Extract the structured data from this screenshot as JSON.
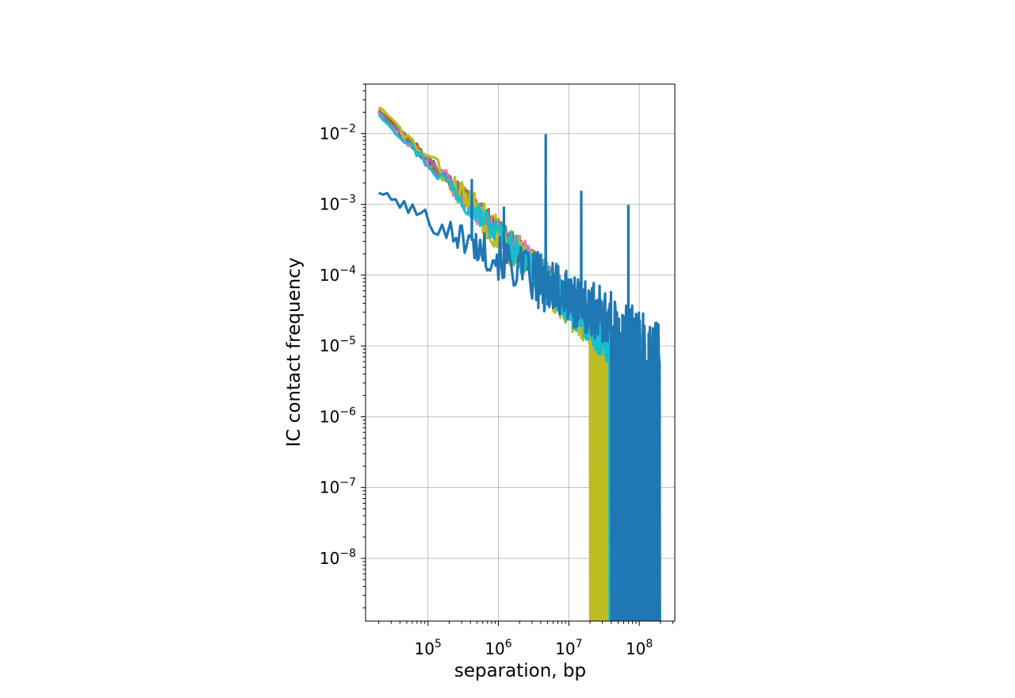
{
  "chart_data": {
    "type": "line",
    "xlabel": "separation, bp",
    "ylabel": "IC contact frequency",
    "xscale": "log",
    "yscale": "log",
    "xlim": [
      13000,
      320000000
    ],
    "ylim": [
      1.3e-09,
      0.05
    ],
    "grid": true,
    "x_ticks": [
      {
        "base": "10",
        "exp": "5",
        "value": 100000
      },
      {
        "base": "10",
        "exp": "6",
        "value": 1000000
      },
      {
        "base": "10",
        "exp": "7",
        "value": 10000000
      },
      {
        "base": "10",
        "exp": "8",
        "value": 100000000
      }
    ],
    "y_ticks": [
      {
        "base": "10",
        "exp": "−2",
        "value": 0.01
      },
      {
        "base": "10",
        "exp": "−3",
        "value": 0.001
      },
      {
        "base": "10",
        "exp": "−4",
        "value": 0.0001
      },
      {
        "base": "10",
        "exp": "−5",
        "value": 1e-05
      },
      {
        "base": "10",
        "exp": "−6",
        "value": 1e-06
      },
      {
        "base": "10",
        "exp": "−7",
        "value": 1e-07
      },
      {
        "base": "10",
        "exp": "−8",
        "value": 1e-08
      }
    ],
    "series": [
      {
        "color": "#2ca02c",
        "seed": 11,
        "x_end": 200000000,
        "y_start": 0.021,
        "slope": -1.0,
        "noise": 0.22,
        "drop_start": 150000000
      },
      {
        "color": "#d62728",
        "seed": 23,
        "x_end": 170000000,
        "y_start": 0.022,
        "slope": -1.0,
        "noise": 0.22,
        "drop_start": 120000000
      },
      {
        "color": "#ff7f0e",
        "seed": 37,
        "x_end": 180000000,
        "y_start": 0.0215,
        "slope": -1.0,
        "noise": 0.22,
        "drop_start": 130000000
      },
      {
        "color": "#9467bd",
        "seed": 41,
        "x_end": 150000000,
        "y_start": 0.02,
        "slope": -1.0,
        "noise": 0.22,
        "drop_start": 110000000
      },
      {
        "color": "#8c564b",
        "seed": 53,
        "x_end": 140000000,
        "y_start": 0.021,
        "slope": -1.0,
        "noise": 0.22,
        "drop_start": 100000000
      },
      {
        "color": "#e377c2",
        "seed": 67,
        "x_end": 60000000,
        "y_start": 0.0205,
        "slope": -1.0,
        "noise": 0.26,
        "drop_start": 20000000
      },
      {
        "color": "#7f7f7f",
        "seed": 71,
        "x_end": 130000000,
        "y_start": 0.0212,
        "slope": -1.0,
        "noise": 0.22,
        "drop_start": 90000000
      },
      {
        "color": "#bcbd22",
        "seed": 83,
        "x_end": 40000000,
        "y_start": 0.024,
        "slope": -1.05,
        "noise": 0.3,
        "drop_start": 20000000
      },
      {
        "color": "#17becf",
        "seed": 97,
        "x_end": 170000000,
        "y_start": 0.019,
        "slope": -1.0,
        "noise": 0.28,
        "drop_start": 38000000
      },
      {
        "color": "#1f77b4",
        "seed": 101,
        "x_end": 195000000,
        "y_start": 0.0015,
        "slope": -0.55,
        "noise": 0.4,
        "drop_start": 40000000,
        "spikes": [
          [
            4700000,
            0.0095
          ],
          [
            1200000,
            0.0009
          ],
          [
            15000000,
            0.0015
          ],
          [
            70000000,
            0.00095
          ],
          [
            420000,
            0.0022
          ]
        ]
      }
    ]
  }
}
